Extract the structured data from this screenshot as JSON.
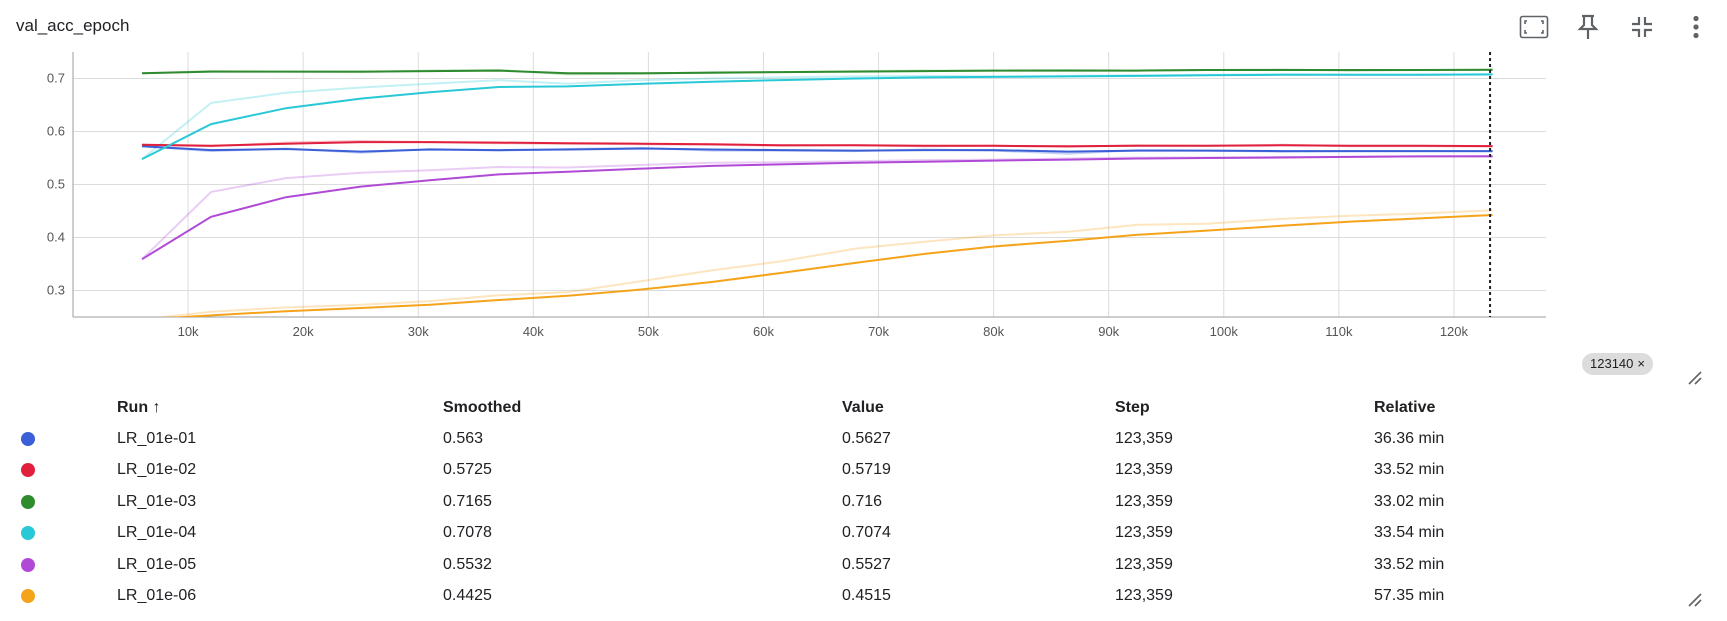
{
  "header": {
    "title": "val_acc_epoch",
    "buttons": [
      {
        "name": "fit-domain-button",
        "icon": "fit-to-data-icon"
      },
      {
        "name": "pin-button",
        "icon": "pin-icon"
      },
      {
        "name": "collapse-button",
        "icon": "collapse-icon"
      },
      {
        "name": "more-button",
        "icon": "more-vert-icon"
      }
    ]
  },
  "step_marker": {
    "label": "123140",
    "close": "×"
  },
  "chart_data": {
    "type": "line",
    "xlabel": "",
    "ylabel": "",
    "xlim": [
      0,
      128000
    ],
    "ylim": [
      0.25,
      0.75
    ],
    "x_ticks": [
      "10k",
      "20k",
      "30k",
      "40k",
      "50k",
      "60k",
      "70k",
      "80k",
      "90k",
      "100k",
      "110k",
      "120k"
    ],
    "y_ticks": [
      "0.3",
      "0.4",
      "0.5",
      "0.6",
      "0.7"
    ],
    "grid": true,
    "cursor_step": 123140,
    "x": [
      6000,
      12000,
      18500,
      25000,
      31000,
      37000,
      43000,
      49500,
      55500,
      61500,
      68000,
      74000,
      80000,
      86500,
      92500,
      98500,
      105000,
      111000,
      117000,
      123359
    ],
    "series": [
      {
        "name": "LR_01e-01",
        "color": "#3a5fd6",
        "smoothed": [
          0.572,
          0.565,
          0.567,
          0.562,
          0.566,
          0.565,
          0.566,
          0.568,
          0.566,
          0.565,
          0.564,
          0.565,
          0.565,
          0.562,
          0.564,
          0.564,
          0.563,
          0.563,
          0.563,
          0.563
        ],
        "raw": [
          0.572,
          0.563,
          0.568,
          0.56,
          0.567,
          0.564,
          0.567,
          0.569,
          0.564,
          0.564,
          0.563,
          0.566,
          0.564,
          0.558,
          0.565,
          0.564,
          0.562,
          0.563,
          0.563,
          0.5627
        ]
      },
      {
        "name": "LR_01e-02",
        "color": "#e0203d",
        "smoothed": [
          0.575,
          0.573,
          0.577,
          0.58,
          0.58,
          0.579,
          0.578,
          0.577,
          0.576,
          0.574,
          0.574,
          0.573,
          0.573,
          0.572,
          0.573,
          0.573,
          0.574,
          0.573,
          0.573,
          0.5725
        ],
        "raw": [
          0.575,
          0.572,
          0.579,
          0.582,
          0.58,
          0.578,
          0.577,
          0.576,
          0.575,
          0.573,
          0.574,
          0.572,
          0.573,
          0.571,
          0.574,
          0.573,
          0.575,
          0.572,
          0.572,
          0.5719
        ]
      },
      {
        "name": "LR_01e-03",
        "color": "#2e8b2e",
        "smoothed": [
          0.71,
          0.713,
          0.713,
          0.713,
          0.714,
          0.715,
          0.71,
          0.71,
          0.711,
          0.712,
          0.713,
          0.714,
          0.715,
          0.715,
          0.715,
          0.716,
          0.716,
          0.716,
          0.716,
          0.7165
        ],
        "raw": [
          0.71,
          0.714,
          0.713,
          0.712,
          0.715,
          0.716,
          0.708,
          0.709,
          0.712,
          0.712,
          0.714,
          0.715,
          0.715,
          0.716,
          0.715,
          0.716,
          0.717,
          0.715,
          0.716,
          0.716
        ]
      },
      {
        "name": "LR_01e-04",
        "color": "#28c8d6",
        "smoothed": [
          0.548,
          0.614,
          0.644,
          0.662,
          0.674,
          0.684,
          0.685,
          0.69,
          0.694,
          0.697,
          0.7,
          0.702,
          0.703,
          0.704,
          0.705,
          0.706,
          0.707,
          0.707,
          0.707,
          0.7078
        ],
        "raw": [
          0.548,
          0.654,
          0.673,
          0.683,
          0.69,
          0.697,
          0.69,
          0.697,
          0.7,
          0.702,
          0.704,
          0.705,
          0.704,
          0.705,
          0.706,
          0.707,
          0.708,
          0.707,
          0.707,
          0.7074
        ]
      },
      {
        "name": "LR_01e-05",
        "color": "#b04ad6",
        "smoothed": [
          0.359,
          0.439,
          0.476,
          0.496,
          0.508,
          0.519,
          0.524,
          0.53,
          0.535,
          0.538,
          0.541,
          0.543,
          0.545,
          0.547,
          0.549,
          0.55,
          0.551,
          0.552,
          0.553,
          0.5532
        ],
        "raw": [
          0.359,
          0.486,
          0.512,
          0.522,
          0.527,
          0.533,
          0.532,
          0.537,
          0.541,
          0.542,
          0.544,
          0.546,
          0.547,
          0.549,
          0.551,
          0.551,
          0.552,
          0.552,
          0.553,
          0.5527
        ]
      },
      {
        "name": "LR_01e-06",
        "color": "#f5a31a",
        "smoothed": [
          0.245,
          0.253,
          0.261,
          0.267,
          0.273,
          0.282,
          0.29,
          0.302,
          0.316,
          0.333,
          0.352,
          0.369,
          0.383,
          0.394,
          0.405,
          0.413,
          0.422,
          0.43,
          0.436,
          0.4425
        ],
        "raw": [
          0.245,
          0.26,
          0.268,
          0.273,
          0.28,
          0.291,
          0.297,
          0.318,
          0.338,
          0.355,
          0.379,
          0.392,
          0.404,
          0.411,
          0.424,
          0.426,
          0.435,
          0.441,
          0.445,
          0.4515
        ]
      }
    ]
  },
  "table": {
    "columns": [
      "",
      "Run ↑",
      "Smoothed",
      "Value",
      "Step",
      "Relative"
    ],
    "rows": [
      {
        "run": "LR_01e-01",
        "smoothed": "0.563",
        "value": "0.5627",
        "step": "123,359",
        "relative": "36.36 min"
      },
      {
        "run": "LR_01e-02",
        "smoothed": "0.5725",
        "value": "0.5719",
        "step": "123,359",
        "relative": "33.52 min"
      },
      {
        "run": "LR_01e-03",
        "smoothed": "0.7165",
        "value": "0.716",
        "step": "123,359",
        "relative": "33.02 min"
      },
      {
        "run": "LR_01e-04",
        "smoothed": "0.7078",
        "value": "0.7074",
        "step": "123,359",
        "relative": "33.54 min"
      },
      {
        "run": "LR_01e-05",
        "smoothed": "0.5532",
        "value": "0.5527",
        "step": "123,359",
        "relative": "33.52 min"
      },
      {
        "run": "LR_01e-06",
        "smoothed": "0.4425",
        "value": "0.4515",
        "step": "123,359",
        "relative": "57.35 min"
      }
    ]
  }
}
